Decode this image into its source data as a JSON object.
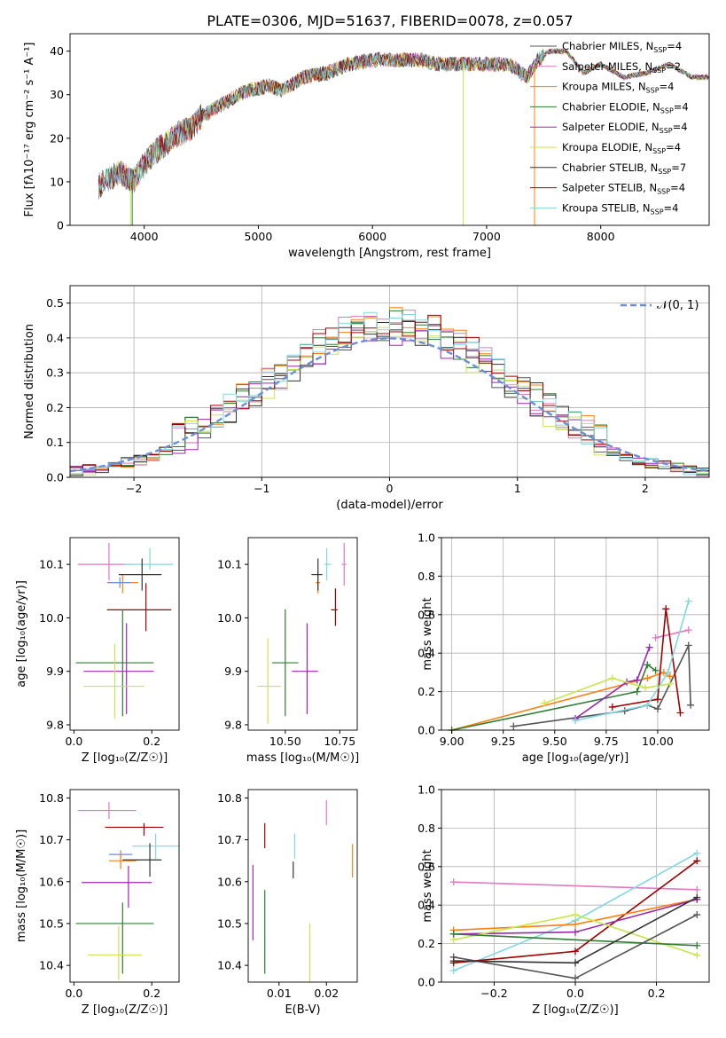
{
  "figure": {
    "title": "PLATE=0306, MJD=51637, FIBERID=0078, z=0.057"
  },
  "chart_data": [
    {
      "type": "line",
      "xlabel": "wavelength [Angstrom, rest frame]",
      "ylabel": "Flux [fλ10⁻¹⁷ erg cm⁻² s⁻¹ A⁻¹]",
      "xlim": [
        3350,
        8950
      ],
      "ylim": [
        0,
        44
      ],
      "xticks": [
        4000,
        5000,
        6000,
        7000,
        8000
      ],
      "yticks": [
        0,
        10,
        20,
        30,
        40
      ],
      "grid": false,
      "legend_position": "top-right",
      "spectrum_envelope": {
        "x": [
          3600,
          3700,
          3800,
          3900,
          4000,
          4100,
          4200,
          4300,
          4400,
          4500,
          4700,
          4900,
          5100,
          5200,
          5400,
          5600,
          5800,
          6000,
          6200,
          6400,
          6600,
          6800,
          7000,
          7200,
          7350,
          7450,
          7550,
          7700,
          7850,
          8000,
          8200,
          8400,
          8600,
          8800,
          8950
        ],
        "y": [
          9,
          11,
          12,
          10,
          14,
          17,
          19,
          21,
          22,
          25,
          28,
          31,
          32,
          31,
          34,
          35,
          37,
          38,
          38,
          38,
          37,
          37,
          37,
          37,
          34,
          38,
          40,
          40,
          35,
          37,
          34,
          35,
          37,
          34,
          34
        ]
      },
      "series": [
        {
          "name": "Chabrier MILES, N_SSP=4",
          "color": "#555555"
        },
        {
          "name": "Salpeter MILES, N_SSP=2",
          "color": "#e377c2"
        },
        {
          "name": "Kroupa MILES, N_SSP=4",
          "color": "#ff7f0e"
        },
        {
          "name": "Chabrier ELODIE, N_SSP=4",
          "color": "#2e7d32"
        },
        {
          "name": "Salpeter ELODIE, N_SSP=4",
          "color": "#9c27b0"
        },
        {
          "name": "Kroupa ELODIE, N_SSP=4",
          "color": "#c8e64c"
        },
        {
          "name": "Chabrier STELIB, N_SSP=7",
          "color": "#333333"
        },
        {
          "name": "Salpeter STELIB, N_SSP=4",
          "color": "#a00000"
        },
        {
          "name": "Kroupa STELIB, N_SSP=4",
          "color": "#80d8e0"
        }
      ]
    },
    {
      "type": "histogram",
      "xlabel": "(data-model)/error",
      "ylabel": "Normed distribution",
      "xlim": [
        -2.5,
        2.5
      ],
      "ylim": [
        0,
        0.55
      ],
      "xticks": [
        -2,
        -1,
        0,
        1,
        2
      ],
      "yticks": [
        0.0,
        0.1,
        0.2,
        0.3,
        0.4,
        0.5
      ],
      "grid": true,
      "legend": "𝒩(0, 1)",
      "legend_position": "top-right",
      "bin_width": 0.1,
      "reference_curve": "gaussian mean 0 sigma 1",
      "reference_color": "#6a8ed8"
    },
    {
      "type": "scatter",
      "xlabel": "Z [log₁₀(Z/Z☉)]",
      "ylabel": "age  [log₁₀(age/yr)]",
      "xlim": [
        -0.01,
        0.27
      ],
      "ylim": [
        9.79,
        10.15
      ],
      "xticks": [
        0.0,
        0.2
      ],
      "yticks": [
        9.8,
        9.9,
        10.0,
        10.1
      ],
      "points": [
        {
          "x": 0.09,
          "y": 10.1,
          "xerr": [
            0.08,
            0.06
          ],
          "yerr": [
            0.03,
            0.04
          ],
          "color": "#e377c2"
        },
        {
          "x": 0.195,
          "y": 10.1,
          "xerr": [
            0.065,
            0.06
          ],
          "yerr": [
            0.01,
            0.03
          ],
          "color": "#80d8e0"
        },
        {
          "x": 0.125,
          "y": 10.066,
          "xerr": [
            0.04,
            0.04
          ],
          "yerr": [
            0.02,
            0.015
          ],
          "color": "#ff7f0e"
        },
        {
          "x": 0.118,
          "y": 10.066,
          "xerr": [
            0.03,
            0.03
          ],
          "yerr": [
            0.01,
            0.01
          ],
          "color": "#6a8ed8"
        },
        {
          "x": 0.175,
          "y": 10.081,
          "xerr": [
            0.06,
            0.05
          ],
          "yerr": [
            0.03,
            0.03
          ],
          "color": "#333333"
        },
        {
          "x": 0.185,
          "y": 10.015,
          "xerr": [
            0.1,
            0.065
          ],
          "yerr": [
            0.04,
            0.05
          ],
          "color": "#a00000"
        },
        {
          "x": 0.125,
          "y": 9.916,
          "xerr": [
            0.12,
            0.08
          ],
          "yerr": [
            0.1,
            0.1
          ],
          "color": "#2e7d32"
        },
        {
          "x": 0.135,
          "y": 9.9,
          "xerr": [
            0.11,
            0.07
          ],
          "yerr": [
            0.08,
            0.09
          ],
          "color": "#9c27b0"
        },
        {
          "x": 0.105,
          "y": 9.872,
          "xerr": [
            0.08,
            0.075
          ],
          "yerr": [
            0.06,
            0.08
          ],
          "color": "#c8e64c"
        }
      ]
    },
    {
      "type": "scatter",
      "xlabel": "mass [log₁₀(M/M☉)]",
      "ylabel": "",
      "xlim": [
        10.33,
        10.83
      ],
      "ylim": [
        9.79,
        10.15
      ],
      "xticks": [
        10.5,
        10.75
      ],
      "yticks": [
        9.8,
        9.9,
        10.0,
        10.1
      ],
      "points": [
        {
          "x": 10.77,
          "y": 10.1,
          "xerr": [
            0.01,
            0.01
          ],
          "yerr": [
            0.04,
            0.04
          ],
          "color": "#e377c2"
        },
        {
          "x": 10.69,
          "y": 10.1,
          "xerr": [
            0.01,
            0.02
          ],
          "yerr": [
            0.03,
            0.03
          ],
          "color": "#80d8e0"
        },
        {
          "x": 10.65,
          "y": 10.066,
          "xerr": [
            0.01,
            0.01
          ],
          "yerr": [
            0.02,
            0.02
          ],
          "color": "#ff7f0e"
        },
        {
          "x": 10.65,
          "y": 10.081,
          "xerr": [
            0.03,
            0.02
          ],
          "yerr": [
            0.03,
            0.03
          ],
          "color": "#333333"
        },
        {
          "x": 10.73,
          "y": 10.015,
          "xerr": [
            0.02,
            0.01
          ],
          "yerr": [
            0.03,
            0.04
          ],
          "color": "#a00000"
        },
        {
          "x": 10.5,
          "y": 9.916,
          "xerr": [
            0.06,
            0.06
          ],
          "yerr": [
            0.1,
            0.1
          ],
          "color": "#2e7d32"
        },
        {
          "x": 10.6,
          "y": 9.9,
          "xerr": [
            0.07,
            0.05
          ],
          "yerr": [
            0.08,
            0.09
          ],
          "color": "#9c27b0"
        },
        {
          "x": 10.42,
          "y": 9.872,
          "xerr": [
            0.05,
            0.06
          ],
          "yerr": [
            0.07,
            0.09
          ],
          "color": "#c8e64c"
        }
      ]
    },
    {
      "type": "line",
      "xlabel": "age  [log₁₀(age/yr)]",
      "ylabel": "mass weight",
      "xlim": [
        8.95,
        10.25
      ],
      "ylim": [
        0.0,
        1.0
      ],
      "xticks": [
        9.0,
        9.25,
        9.5,
        9.75,
        10.0
      ],
      "yticks": [
        0.0,
        0.2,
        0.4,
        0.6,
        0.8,
        1.0
      ],
      "grid": true,
      "series": [
        {
          "color": "#555555",
          "x": [
            9.3,
            9.84,
            9.95,
            10.0,
            10.15,
            10.16
          ],
          "y": [
            0.02,
            0.1,
            0.13,
            0.11,
            0.44,
            0.13
          ]
        },
        {
          "color": "#e377c2",
          "x": [
            9.99,
            10.15
          ],
          "y": [
            0.48,
            0.52
          ]
        },
        {
          "color": "#ff7f0e",
          "x": [
            9.0,
            9.95,
            10.03,
            10.06
          ],
          "y": [
            0.0,
            0.27,
            0.3,
            0.28
          ]
        },
        {
          "color": "#2e7d32",
          "x": [
            9.0,
            9.9,
            9.95,
            9.99
          ],
          "y": [
            0.0,
            0.2,
            0.34,
            0.31
          ]
        },
        {
          "color": "#9c27b0",
          "x": [
            9.6,
            9.85,
            9.9,
            9.96
          ],
          "y": [
            0.06,
            0.25,
            0.26,
            0.43
          ]
        },
        {
          "color": "#c8e64c",
          "x": [
            9.45,
            9.78,
            9.94,
            10.06
          ],
          "y": [
            0.14,
            0.27,
            0.22,
            0.24
          ]
        },
        {
          "color": "#a00000",
          "x": [
            9.78,
            10.0,
            10.04,
            10.11
          ],
          "y": [
            0.12,
            0.16,
            0.63,
            0.09
          ]
        },
        {
          "color": "#80d8e0",
          "x": [
            9.6,
            9.95,
            10.05,
            10.15
          ],
          "y": [
            0.05,
            0.13,
            0.3,
            0.67
          ]
        }
      ]
    },
    {
      "type": "scatter",
      "xlabel": "Z [log₁₀(Z/Z☉)]",
      "ylabel": "mass [log₁₀(M/M☉)]",
      "xlim": [
        -0.01,
        0.27
      ],
      "ylim": [
        10.36,
        10.82
      ],
      "xticks": [
        0.0,
        0.2
      ],
      "yticks": [
        10.4,
        10.5,
        10.6,
        10.7,
        10.8
      ],
      "points": [
        {
          "x": 0.09,
          "y": 10.77,
          "xerr": [
            0.08,
            0.07
          ],
          "yerr": [
            0.02,
            0.02
          ],
          "color": "#e377c2"
        },
        {
          "x": 0.18,
          "y": 10.73,
          "xerr": [
            0.1,
            0.05
          ],
          "yerr": [
            0.02,
            0.01
          ],
          "color": "#a00000"
        },
        {
          "x": 0.21,
          "y": 10.685,
          "xerr": [
            0.06,
            0.06
          ],
          "yerr": [
            0.03,
            0.03
          ],
          "color": "#80d8e0"
        },
        {
          "x": 0.12,
          "y": 10.665,
          "xerr": [
            0.03,
            0.03
          ],
          "yerr": [
            0.01,
            0.01
          ],
          "color": "#6a8ed8"
        },
        {
          "x": 0.12,
          "y": 10.65,
          "xerr": [
            0.03,
            0.04
          ],
          "yerr": [
            0.02,
            0.02
          ],
          "color": "#ff7f0e"
        },
        {
          "x": 0.195,
          "y": 10.652,
          "xerr": [
            0.07,
            0.03
          ],
          "yerr": [
            0.04,
            0.04
          ],
          "color": "#333333"
        },
        {
          "x": 0.14,
          "y": 10.598,
          "xerr": [
            0.12,
            0.06
          ],
          "yerr": [
            0.06,
            0.04
          ],
          "color": "#9c27b0"
        },
        {
          "x": 0.125,
          "y": 10.5,
          "xerr": [
            0.12,
            0.08
          ],
          "yerr": [
            0.12,
            0.05
          ],
          "color": "#2e7d32"
        },
        {
          "x": 0.115,
          "y": 10.425,
          "xerr": [
            0.08,
            0.06
          ],
          "yerr": [
            0.06,
            0.07
          ],
          "color": "#c8e64c"
        }
      ]
    },
    {
      "type": "scatter",
      "xlabel": "E(B-V)",
      "ylabel": "",
      "xlim": [
        0.0035,
        0.0265
      ],
      "ylim": [
        10.36,
        10.82
      ],
      "xticks": [
        0.01,
        0.02
      ],
      "yticks": [
        10.4,
        10.5,
        10.6,
        10.7,
        10.8
      ],
      "points": [
        {
          "x": 0.02,
          "y": 10.765,
          "yerr": [
            0.03,
            0.03
          ],
          "color": "#e377c2"
        },
        {
          "x": 0.007,
          "y": 10.71,
          "yerr": [
            0.03,
            0.03
          ],
          "color": "#a00000"
        },
        {
          "x": 0.0133,
          "y": 10.685,
          "yerr": [
            0.03,
            0.03
          ],
          "color": "#80d8e0"
        },
        {
          "x": 0.013,
          "y": 10.628,
          "yerr": [
            0.02,
            0.02
          ],
          "color": "#333333"
        },
        {
          "x": 0.0255,
          "y": 10.65,
          "yerr": [
            0.04,
            0.04
          ],
          "color": "#ff7f0e"
        },
        {
          "x": 0.0045,
          "y": 10.55,
          "yerr": [
            0.09,
            0.09
          ],
          "color": "#9c27b0"
        },
        {
          "x": 0.007,
          "y": 10.48,
          "yerr": [
            0.1,
            0.1
          ],
          "color": "#2e7d32"
        },
        {
          "x": 0.0165,
          "y": 10.43,
          "yerr": [
            0.07,
            0.07
          ],
          "color": "#c8e64c"
        }
      ]
    },
    {
      "type": "line",
      "xlabel": "Z [log₁₀(Z/Z☉)]",
      "ylabel": "mass weight",
      "xlim": [
        -0.33,
        0.33
      ],
      "ylim": [
        0.0,
        1.0
      ],
      "xticks": [
        -0.2,
        0.0,
        0.2
      ],
      "yticks": [
        0.0,
        0.2,
        0.4,
        0.6,
        0.8,
        1.0
      ],
      "grid": true,
      "series": [
        {
          "color": "#e377c2",
          "x": [
            -0.3,
            0.3
          ],
          "y": [
            0.52,
            0.48
          ]
        },
        {
          "color": "#80d8e0",
          "x": [
            -0.3,
            0.0,
            0.3
          ],
          "y": [
            0.06,
            0.32,
            0.67
          ]
        },
        {
          "color": "#a00000",
          "x": [
            -0.3,
            0.0,
            0.3
          ],
          "y": [
            0.1,
            0.16,
            0.63
          ]
        },
        {
          "color": "#ff7f0e",
          "x": [
            -0.3,
            0.0,
            0.3
          ],
          "y": [
            0.27,
            0.3,
            0.43
          ]
        },
        {
          "color": "#9c27b0",
          "x": [
            -0.3,
            0.0,
            0.3
          ],
          "y": [
            0.25,
            0.26,
            0.43
          ]
        },
        {
          "color": "#c8e64c",
          "x": [
            -0.3,
            0.0,
            0.3
          ],
          "y": [
            0.22,
            0.35,
            0.14
          ]
        },
        {
          "color": "#2e7d32",
          "x": [
            -0.3,
            0.3
          ],
          "y": [
            0.25,
            0.19
          ]
        },
        {
          "color": "#555555",
          "x": [
            -0.3,
            0.0,
            0.3
          ],
          "y": [
            0.13,
            0.02,
            0.35
          ]
        },
        {
          "color": "#333333",
          "x": [
            -0.3,
            0.0,
            0.3
          ],
          "y": [
            0.11,
            0.1,
            0.44
          ]
        }
      ]
    }
  ]
}
